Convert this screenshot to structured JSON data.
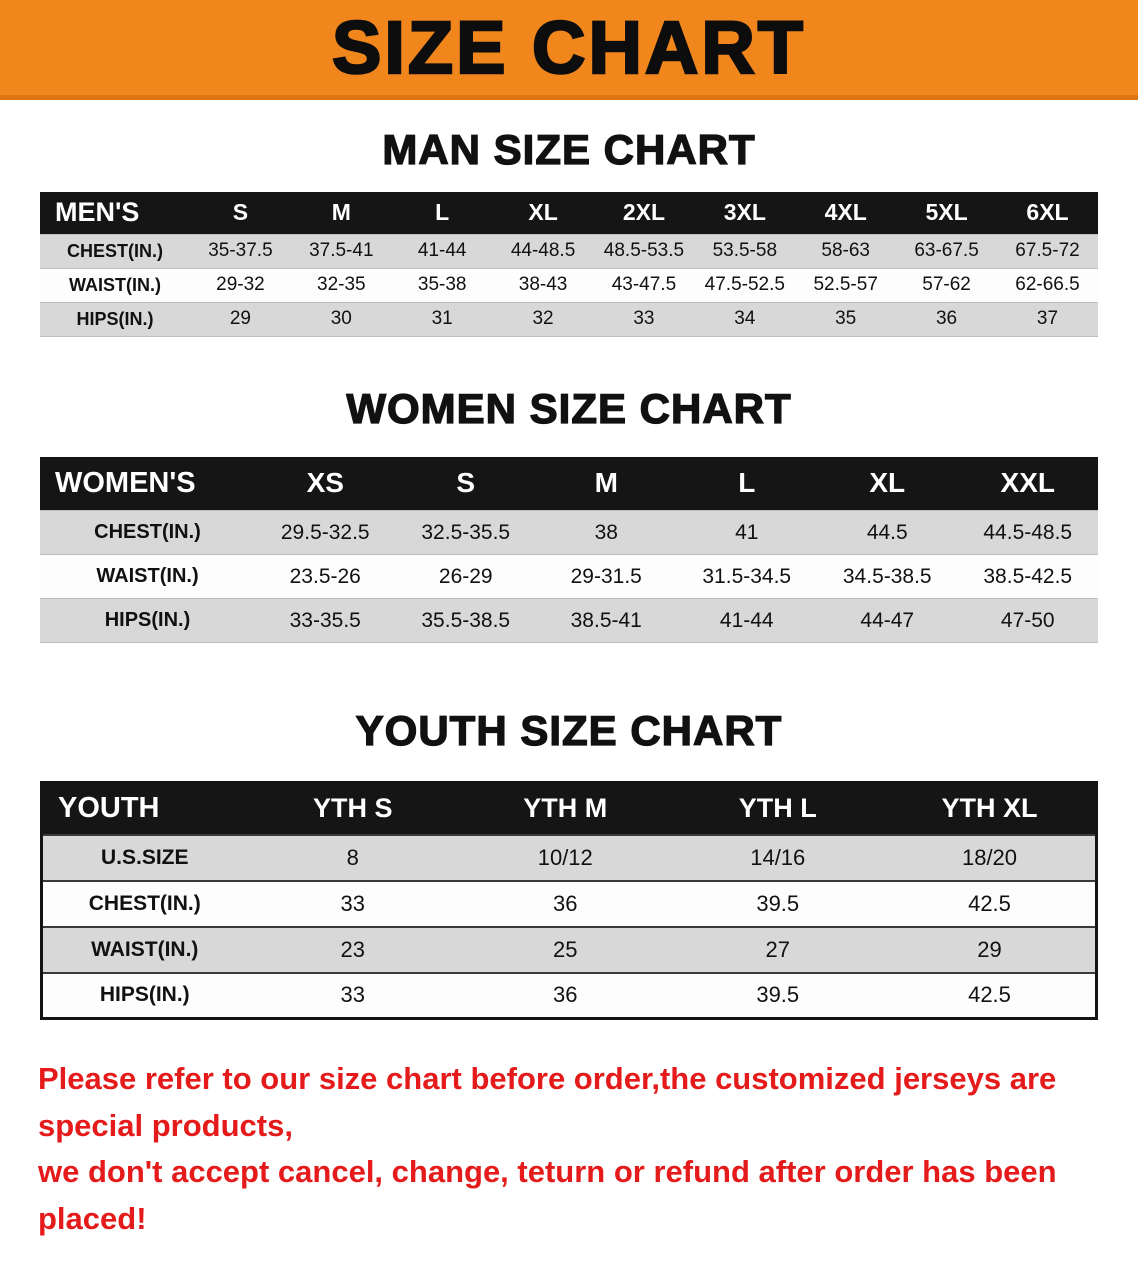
{
  "banner": {
    "title": "SIZE CHART"
  },
  "colors": {
    "banner_bg": "#F0861C",
    "table_header_bg": "#151515",
    "row_alt_gray": "#D8D8D8",
    "footer_red": "#E51A1A"
  },
  "men": {
    "heading": "MAN SIZE CHART",
    "corner": "MEN'S",
    "columns": [
      "S",
      "M",
      "L",
      "XL",
      "2XL",
      "3XL",
      "4XL",
      "5XL",
      "6XL"
    ],
    "rows": [
      {
        "label": "CHEST(IN.)",
        "values": [
          "35-37.5",
          "37.5-41",
          "41-44",
          "44-48.5",
          "48.5-53.5",
          "53.5-58",
          "58-63",
          "63-67.5",
          "67.5-72"
        ]
      },
      {
        "label": "WAIST(IN.)",
        "values": [
          "29-32",
          "32-35",
          "35-38",
          "38-43",
          "43-47.5",
          "47.5-52.5",
          "52.5-57",
          "57-62",
          "62-66.5"
        ]
      },
      {
        "label": "HIPS(IN.)",
        "values": [
          "29",
          "30",
          "31",
          "32",
          "33",
          "34",
          "35",
          "36",
          "37"
        ]
      }
    ]
  },
  "women": {
    "heading": "WOMEN SIZE CHART",
    "corner": "WOMEN'S",
    "columns": [
      "XS",
      "S",
      "M",
      "L",
      "XL",
      "XXL"
    ],
    "rows": [
      {
        "label": "CHEST(IN.)",
        "values": [
          "29.5-32.5",
          "32.5-35.5",
          "38",
          "41",
          "44.5",
          "44.5-48.5"
        ]
      },
      {
        "label": "WAIST(IN.)",
        "values": [
          "23.5-26",
          "26-29",
          "29-31.5",
          "31.5-34.5",
          "34.5-38.5",
          "38.5-42.5"
        ]
      },
      {
        "label": "HIPS(IN.)",
        "values": [
          "33-35.5",
          "35.5-38.5",
          "38.5-41",
          "41-44",
          "44-47",
          "47-50"
        ]
      }
    ]
  },
  "youth": {
    "heading": "YOUTH SIZE CHART",
    "corner": "YOUTH",
    "columns": [
      "YTH S",
      "YTH M",
      "YTH L",
      "YTH XL"
    ],
    "rows": [
      {
        "label": "U.S.SIZE",
        "values": [
          "8",
          "10/12",
          "14/16",
          "18/20"
        ]
      },
      {
        "label": "CHEST(IN.)",
        "values": [
          "33",
          "36",
          "39.5",
          "42.5"
        ]
      },
      {
        "label": "WAIST(IN.)",
        "values": [
          "23",
          "25",
          "27",
          "29"
        ]
      },
      {
        "label": "HIPS(IN.)",
        "values": [
          "33",
          "36",
          "39.5",
          "42.5"
        ]
      }
    ]
  },
  "footer": {
    "line1": "Please refer to our size chart before order,the customized jerseys are special products,",
    "line2": "we don't accept cancel, change, teturn or refund after order has been placed!"
  }
}
